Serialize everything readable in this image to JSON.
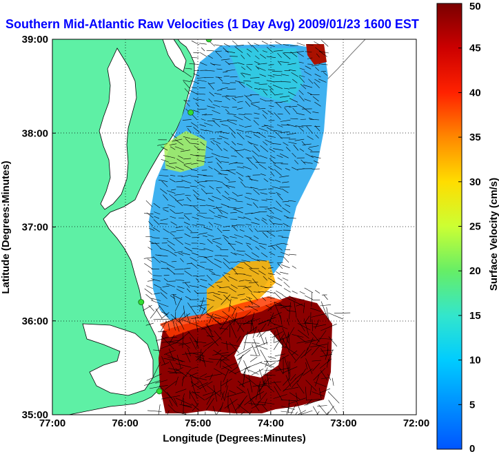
{
  "chart_data": {
    "type": "heatmap",
    "title": "Southern Mid-Atlantic Raw Velocities (1 Day Avg) 2009/01/23 1600 EST",
    "xlabel": "Longitude (Degrees:Minutes)",
    "ylabel": "Latitude (Degrees:Minutes)",
    "x_ticks": [
      "77:00",
      "76:00",
      "75:00",
      "74:00",
      "73:00",
      "72:00"
    ],
    "y_ticks": [
      "39:00",
      "38:00",
      "37:00",
      "36:00",
      "35:00"
    ],
    "x_values": [
      -77,
      -76,
      -75,
      -74,
      -73,
      -72
    ],
    "y_values": [
      39,
      38,
      37,
      36,
      35
    ],
    "xlim": [
      -77,
      -72
    ],
    "ylim": [
      35,
      39
    ],
    "grid": true,
    "colorbar": {
      "label": "Surface Velocity (cm/s)",
      "ticks": [
        "0",
        "5",
        "10",
        "15",
        "20",
        "25",
        "30",
        "35",
        "40",
        "45",
        "50"
      ],
      "range": [
        0,
        50
      ]
    },
    "colors": {
      "land": "#5ef0a5",
      "title": "#0000ff",
      "site_marker": "#33dd33"
    },
    "site_markers": [
      {
        "lon": -74.85,
        "lat": 39.0
      },
      {
        "lon": -75.1,
        "lat": 38.22
      },
      {
        "lon": -75.78,
        "lat": 36.2
      },
      {
        "lon": -75.53,
        "lat": 35.25
      }
    ]
  }
}
